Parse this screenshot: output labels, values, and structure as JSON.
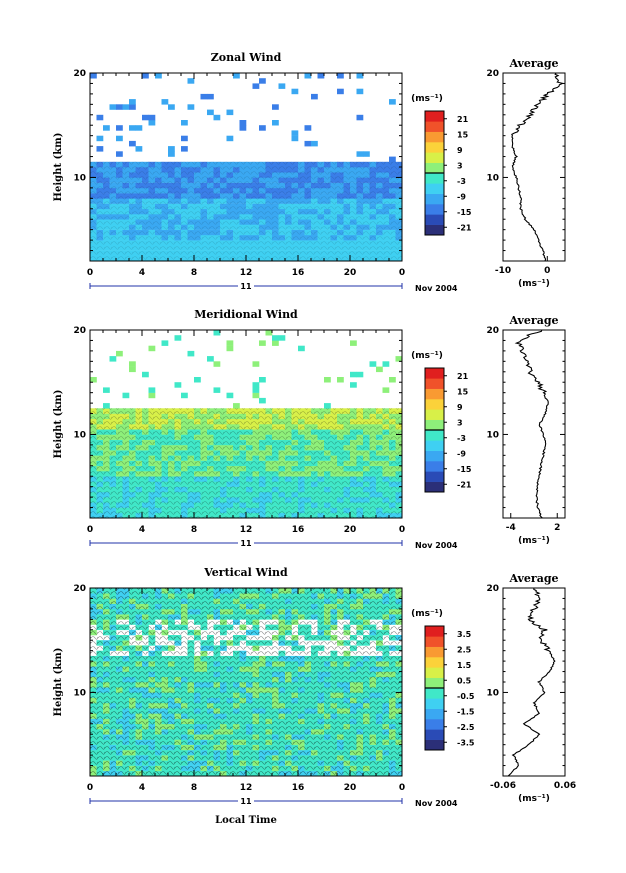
{
  "units_label": "(ms⁻¹)",
  "date_label": "Nov 2004",
  "day_label": "11",
  "xlabel_bottom": "Local Time",
  "average_title": "Average",
  "colors": {
    "scale": [
      "#2b2f78",
      "#2a4bb6",
      "#3a7ee8",
      "#3aa8f2",
      "#3fd0f2",
      "#40e8c8",
      "#8ef07a",
      "#d8f048",
      "#fbd23a",
      "#f99a32",
      "#f0522a",
      "#e01f1f"
    ],
    "missing": "#ffffff"
  },
  "chart_data": [
    {
      "type": "heatmap",
      "title": "Zonal Wind",
      "xlabel": "",
      "ylabel": "Height (km)",
      "xlim": [
        0,
        24
      ],
      "ylim": [
        2,
        20
      ],
      "x_ticks": [
        "0",
        "4",
        "8",
        "12",
        "16",
        "20",
        "0"
      ],
      "y_ticks": [
        "10",
        "20"
      ],
      "colorbar": {
        "ticks": [
          "21",
          "15",
          "9",
          "3",
          "-3",
          "-9",
          "-15",
          "-21"
        ],
        "range": [
          -24,
          24
        ]
      },
      "profile": {
        "title": "Average",
        "xlim": [
          -10,
          4
        ],
        "x_ticks": [
          "-10",
          "0"
        ],
        "height": [
          2,
          3,
          4,
          5,
          6,
          7,
          8,
          9,
          10,
          11,
          12,
          13,
          14,
          15,
          16,
          17,
          18,
          19,
          20
        ],
        "value": [
          -0.5,
          -1,
          -2,
          -3,
          -5,
          -6,
          -6,
          -6.5,
          -7,
          -8,
          -7,
          -8,
          -8,
          -6,
          -4,
          -2,
          0,
          3,
          2
        ]
      }
    },
    {
      "type": "heatmap",
      "title": "Meridional Wind",
      "xlabel": "",
      "ylabel": "Height (km)",
      "xlim": [
        0,
        24
      ],
      "ylim": [
        2,
        20
      ],
      "x_ticks": [
        "0",
        "4",
        "8",
        "12",
        "16",
        "20",
        "0"
      ],
      "y_ticks": [
        "10",
        "20"
      ],
      "colorbar": {
        "ticks": [
          "21",
          "15",
          "9",
          "3",
          "-3",
          "-9",
          "-15",
          "-21"
        ],
        "range": [
          -24,
          24
        ]
      },
      "profile": {
        "title": "Average",
        "xlim": [
          -5,
          3
        ],
        "x_ticks": [
          "-4",
          "2"
        ],
        "height": [
          2,
          3,
          4,
          5,
          6,
          7,
          8,
          9,
          10,
          11,
          12,
          13,
          14,
          15,
          16,
          17,
          18,
          19,
          20
        ],
        "value": [
          0,
          -0.5,
          -0.7,
          -0.6,
          -0.3,
          -0.1,
          0.2,
          0.5,
          0.2,
          -0.3,
          0.5,
          0.8,
          0.3,
          -0.5,
          -1.5,
          -2,
          -2.5,
          -3,
          0
        ]
      }
    },
    {
      "type": "heatmap",
      "title": "Vertical Wind",
      "xlabel": "Local Time",
      "ylabel": "Height (km)",
      "xlim": [
        0,
        24
      ],
      "ylim": [
        2,
        20
      ],
      "x_ticks": [
        "0",
        "4",
        "8",
        "12",
        "16",
        "20",
        "0"
      ],
      "y_ticks": [
        "10",
        "20"
      ],
      "colorbar": {
        "ticks": [
          "3.5",
          "2.5",
          "1.5",
          "0.5",
          "-0.5",
          "-1.5",
          "-2.5",
          "-3.5"
        ],
        "range": [
          -4,
          4
        ]
      },
      "profile": {
        "title": "Average",
        "xlim": [
          -0.06,
          0.06
        ],
        "x_ticks": [
          "-0.06",
          "0.06"
        ],
        "height": [
          2,
          3,
          4,
          5,
          6,
          7,
          8,
          9,
          10,
          11,
          12,
          13,
          14,
          15,
          16,
          17,
          18,
          19,
          20
        ],
        "value": [
          -0.05,
          -0.03,
          -0.04,
          -0.01,
          0.01,
          -0.02,
          0.01,
          0.0,
          0.02,
          0.01,
          0.03,
          0.04,
          0.03,
          0.01,
          0.02,
          -0.01,
          0.0,
          0.01,
          0.0
        ]
      }
    }
  ]
}
